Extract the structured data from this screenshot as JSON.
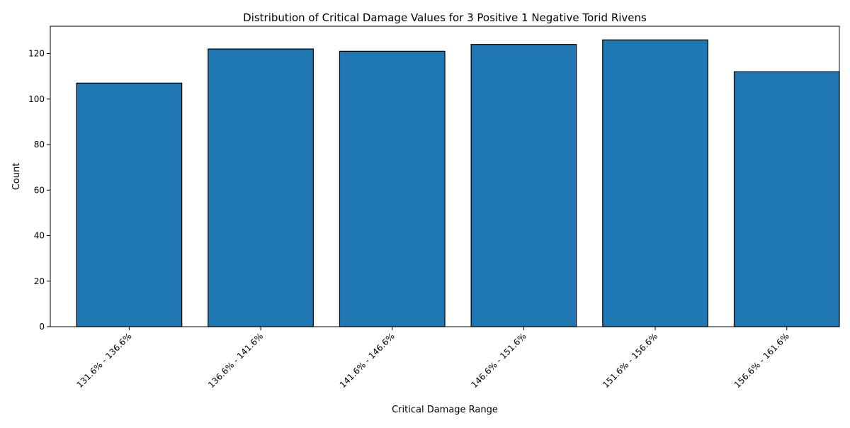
{
  "chart_data": {
    "type": "bar",
    "title": "Distribution of Critical Damage Values for 3 Positive 1 Negative Torid Rivens",
    "xlabel": "Critical Damage Range",
    "ylabel": "Count",
    "categories": [
      "131.6% - 136.6%",
      "136.6% - 141.6%",
      "141.6% - 146.6%",
      "146.6% - 151.6%",
      "151.6% - 156.6%",
      "156.6% - 161.6%"
    ],
    "values": [
      107,
      122,
      121,
      124,
      126,
      112
    ],
    "ylim": [
      0,
      132
    ],
    "yticks": [
      0,
      20,
      40,
      60,
      80,
      100,
      120
    ],
    "grid": false,
    "legend": "none",
    "bar_color": "#1f77b4",
    "bar_edge_color": "#000000"
  }
}
